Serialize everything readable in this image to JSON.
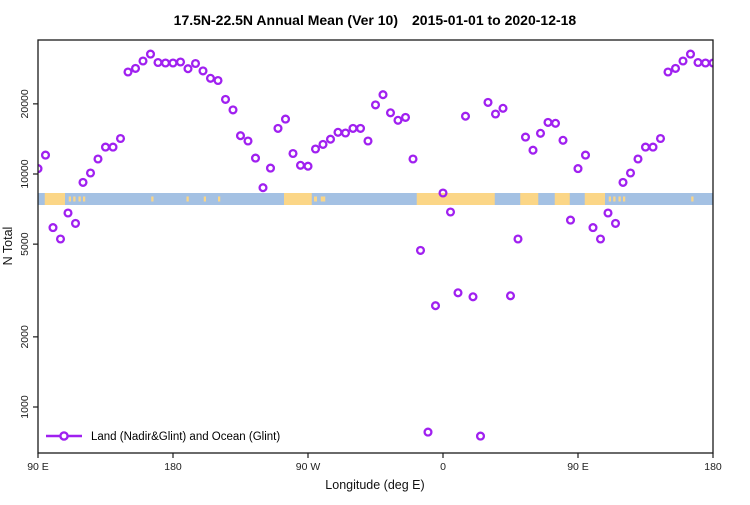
{
  "title": {
    "left": "17.5N-22.5N Annual Mean (Ver 10)",
    "right": "2015-01-01 to 2020-12-18"
  },
  "axes": {
    "x": {
      "label": "Longitude (deg E)",
      "ticks": [
        {
          "deg": 90,
          "label": "90 E"
        },
        {
          "deg": 180,
          "label": "180"
        },
        {
          "deg": 270,
          "label": "90 W"
        },
        {
          "deg": 360,
          "label": "0"
        },
        {
          "deg": 450,
          "label": "90 E"
        },
        {
          "deg": 540,
          "label": "180"
        }
      ]
    },
    "y": {
      "label": "N Total",
      "scale": "log10",
      "ticks": [
        {
          "value": 1000,
          "label": "1000"
        },
        {
          "value": 2000,
          "label": "2000"
        },
        {
          "value": 5000,
          "label": "5000"
        },
        {
          "value": 10000,
          "label": "10000"
        },
        {
          "value": 20000,
          "label": "20000"
        }
      ]
    }
  },
  "legend": {
    "label": "Land (Nadir&Glint) and Ocean (Glint)"
  },
  "colors": {
    "marker": "#A020F0",
    "ocean_band": "#A4C1E3",
    "land_band": "#FBD687",
    "axis": "#1a1a1a",
    "tick_text": "#222222"
  },
  "map_band": {
    "ocean_range_deg": [
      90,
      540
    ],
    "land_segments_deg": [
      [
        94.5,
        108
      ],
      [
        110.5,
        112
      ],
      [
        113.5,
        115
      ],
      [
        117,
        118.5
      ],
      [
        120,
        121.5
      ],
      [
        165.5,
        167
      ],
      [
        189,
        190.5
      ],
      [
        200.5,
        202
      ],
      [
        210,
        211.5
      ],
      [
        254,
        272.5
      ],
      [
        274,
        276
      ],
      [
        278.5,
        281.5
      ],
      [
        342.5,
        394.5
      ],
      [
        411.5,
        423.5
      ],
      [
        434.5,
        444.5
      ],
      [
        454.5,
        468
      ],
      [
        470.5,
        472
      ],
      [
        473.5,
        475
      ],
      [
        477,
        478.5
      ],
      [
        480,
        481.5
      ],
      [
        525.5,
        527
      ]
    ],
    "small_segment_max_width_deg": 4
  },
  "chart_data": {
    "type": "scatter",
    "title": "17.5N-22.5N Annual Mean (Ver 10)  2015-01-01 to 2020-12-18",
    "xlabel": "Longitude (deg E)",
    "ylabel": "N Total",
    "x_axis_note": "longitude unwrapped 90E eastward to 180 (450 deg span); labels wrap 90E,180,90W,0,90E,180",
    "y_scale": "log",
    "ylim": [
      631,
      37600
    ],
    "legend_position": "bottom-left",
    "grid": false,
    "series": [
      {
        "name": "Land (Nadir&Glint) and Ocean (Glint)",
        "marker": "open-circle",
        "points_lon_n": [
          [
            90,
            10550
          ],
          [
            95,
            12050
          ],
          [
            100,
            5890
          ],
          [
            105,
            5260
          ],
          [
            110,
            6800
          ],
          [
            115,
            6140
          ],
          [
            120,
            9200
          ],
          [
            125,
            10100
          ],
          [
            130,
            11600
          ],
          [
            135,
            13050
          ],
          [
            140,
            13050
          ],
          [
            145,
            14200
          ],
          [
            150,
            27400
          ],
          [
            155,
            28400
          ],
          [
            160,
            30550
          ],
          [
            165,
            32700
          ],
          [
            170,
            30100
          ],
          [
            175,
            29950
          ],
          [
            180,
            29950
          ],
          [
            185,
            30250
          ],
          [
            190,
            28300
          ],
          [
            195,
            29800
          ],
          [
            200,
            27700
          ],
          [
            205,
            25750
          ],
          [
            210,
            25200
          ],
          [
            215,
            20900
          ],
          [
            220,
            18850
          ],
          [
            225,
            14600
          ],
          [
            230,
            13850
          ],
          [
            235,
            11700
          ],
          [
            240,
            8730
          ],
          [
            245,
            10600
          ],
          [
            250,
            15700
          ],
          [
            255,
            17200
          ],
          [
            260,
            12250
          ],
          [
            265,
            10900
          ],
          [
            270,
            10800
          ],
          [
            275,
            12800
          ],
          [
            280,
            13400
          ],
          [
            285,
            14100
          ],
          [
            290,
            15100
          ],
          [
            295,
            15000
          ],
          [
            300,
            15700
          ],
          [
            305,
            15700
          ],
          [
            310,
            13850
          ],
          [
            315,
            19800
          ],
          [
            320,
            21900
          ],
          [
            325,
            18300
          ],
          [
            330,
            17000
          ],
          [
            335,
            17500
          ],
          [
            340,
            11600
          ],
          [
            345,
            4700
          ],
          [
            350,
            780
          ],
          [
            355,
            2720
          ],
          [
            360,
            8290
          ],
          [
            365,
            6870
          ],
          [
            370,
            3090
          ],
          [
            375,
            17700
          ],
          [
            380,
            2970
          ],
          [
            385,
            750
          ],
          [
            390,
            20300
          ],
          [
            395,
            18100
          ],
          [
            400,
            19150
          ],
          [
            405,
            3000
          ],
          [
            410,
            5260
          ],
          [
            415,
            14400
          ],
          [
            420,
            12650
          ],
          [
            425,
            14950
          ],
          [
            430,
            16650
          ],
          [
            435,
            16500
          ],
          [
            440,
            13950
          ],
          [
            445,
            6340
          ],
          [
            450,
            10550
          ],
          [
            455,
            12050
          ],
          [
            460,
            5890
          ],
          [
            465,
            5260
          ],
          [
            470,
            6800
          ],
          [
            475,
            6140
          ],
          [
            480,
            9200
          ],
          [
            485,
            10100
          ],
          [
            490,
            11600
          ],
          [
            495,
            13050
          ],
          [
            500,
            13050
          ],
          [
            505,
            14200
          ],
          [
            510,
            27400
          ],
          [
            515,
            28400
          ],
          [
            520,
            30550
          ],
          [
            525,
            32700
          ],
          [
            530,
            30100
          ],
          [
            535,
            29950
          ],
          [
            540,
            29950
          ]
        ]
      }
    ]
  }
}
